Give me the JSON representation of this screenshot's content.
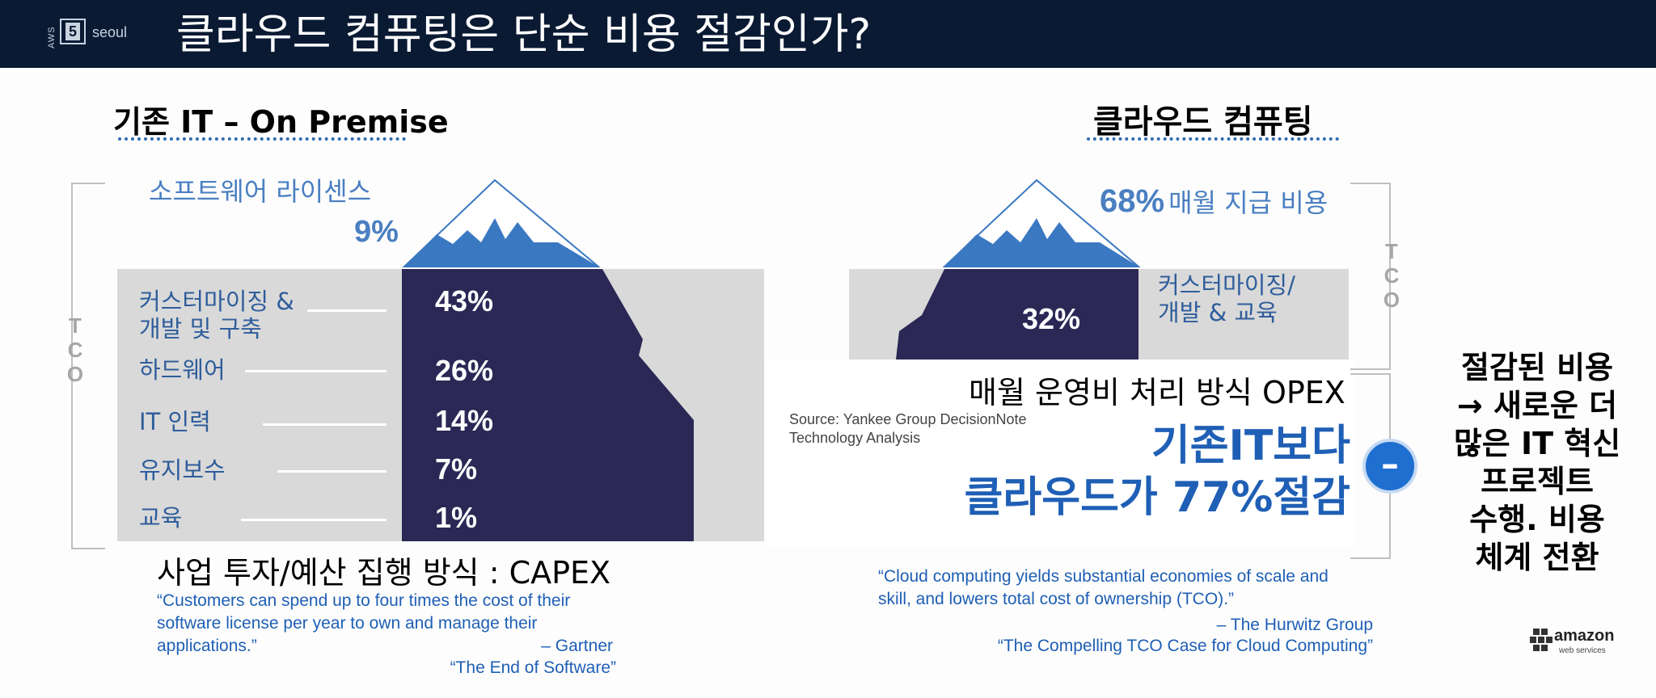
{
  "slide": {
    "logo": {
      "brand": "AWS",
      "badge": "5",
      "city": "seoul"
    },
    "title": "클라우드 컴퓨팅은 단순 비용 절감인가?",
    "left": {
      "heading": "기존 IT – On Premise",
      "tco_label": [
        "T",
        "C",
        "O"
      ],
      "tip": {
        "label": "소프트웨어 라이센스",
        "value": "9%"
      },
      "items": [
        {
          "label": "커스터마이징 &\n개발 및 구축",
          "value": "43%"
        },
        {
          "label": "하드웨어",
          "value": "26%"
        },
        {
          "label": "IT 인력",
          "value": "14%"
        },
        {
          "label": "유지보수",
          "value": "7%"
        },
        {
          "label": "교육",
          "value": "1%"
        }
      ],
      "capex": "사업 투자/예산 집행 방식 : CAPEX",
      "quote": "“Customers can spend up to four times the cost of their software license per year to own and manage their applications.”",
      "quote_author": "– Gartner",
      "quote_source": "“The End of Software”"
    },
    "right": {
      "heading": "클라우드 컴퓨팅",
      "tco_label": [
        "T",
        "C",
        "O"
      ],
      "tip": {
        "value": "68%",
        "label": "매월 지급 비용"
      },
      "item": {
        "label": "커스터마이징/\n개발 & 교육",
        "value": "32%"
      },
      "opex": "매월 운영비 처리 방식 OPEX",
      "source_line1": "Source:  Yankee Group DecisionNote",
      "source_line2": "Technology Analysis",
      "saving_line1": "기존IT보다",
      "saving_line2": "클라우드가 77%절감",
      "minus_symbol": "–",
      "quote": "“Cloud computing yields substantial economies of scale and skill, and lowers total cost of ownership (TCO).”",
      "quote_author": "– The Hurwitz Group",
      "quote_source": "“The Compelling TCO Case for Cloud Computing”"
    },
    "sidenote": "절감된 비용\n→ 새로운 더\n많은 IT 혁신\n프로젝트\n수행. 비용\n체계 전환",
    "footer_logo": {
      "brand": "amazon",
      "tagline": "web services"
    },
    "colors": {
      "topbar": "#0a1a33",
      "iceberg_dark": "#2b2856",
      "ice_blue": "#3a78c2",
      "accent_blue": "#1f5fb5",
      "label_blue": "#2e5d9b",
      "band_grey": "#d9d9d9"
    }
  }
}
